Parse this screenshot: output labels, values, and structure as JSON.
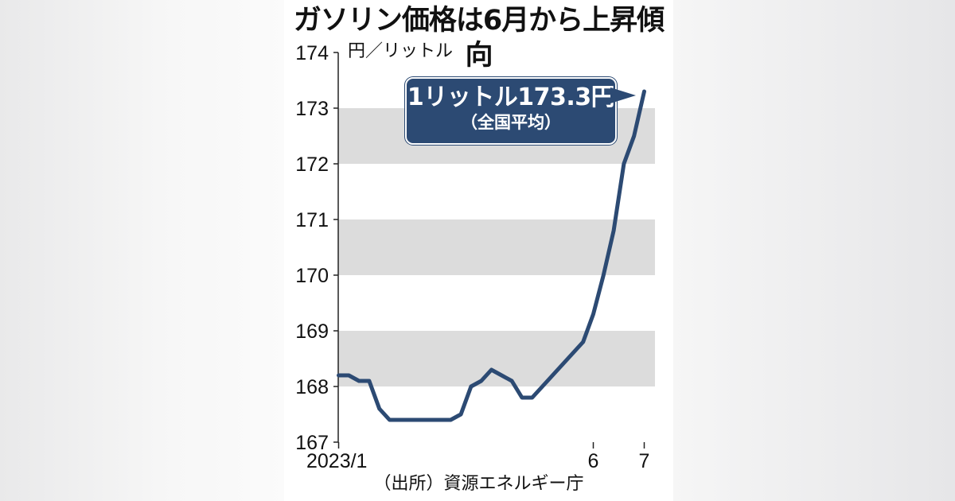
{
  "chart_data": {
    "type": "line",
    "title": "ガソリン価格は6月から上昇傾向",
    "unit_label": "円／リットル",
    "source": "（出所）資源エネルギー庁",
    "ylim": [
      167,
      174
    ],
    "yticks": [
      167,
      168,
      169,
      170,
      171,
      172,
      173,
      174
    ],
    "xticks": [
      {
        "index": 0,
        "label": "2023/1"
      },
      {
        "index": 25,
        "label": "6"
      },
      {
        "index": 30,
        "label": "7"
      }
    ],
    "series": [
      {
        "values": [
          168.2,
          168.2,
          168.1,
          168.1,
          167.6,
          167.4,
          167.4,
          167.4,
          167.4,
          167.4,
          167.4,
          167.4,
          167.5,
          168.0,
          168.1,
          168.3,
          168.2,
          168.1,
          167.8,
          167.8,
          168.0,
          168.2,
          168.4,
          168.6,
          168.8,
          169.3,
          170.0,
          170.8,
          172.0,
          172.5,
          173.3
        ]
      }
    ],
    "annotation": {
      "text": "1リットル173.3円",
      "subtext": "（全国平均）"
    },
    "grid": "alternating horizontal bands"
  },
  "colors": {
    "line": "#2c4a73",
    "band": "#dcdcdc",
    "callout": "#2c4a73"
  }
}
